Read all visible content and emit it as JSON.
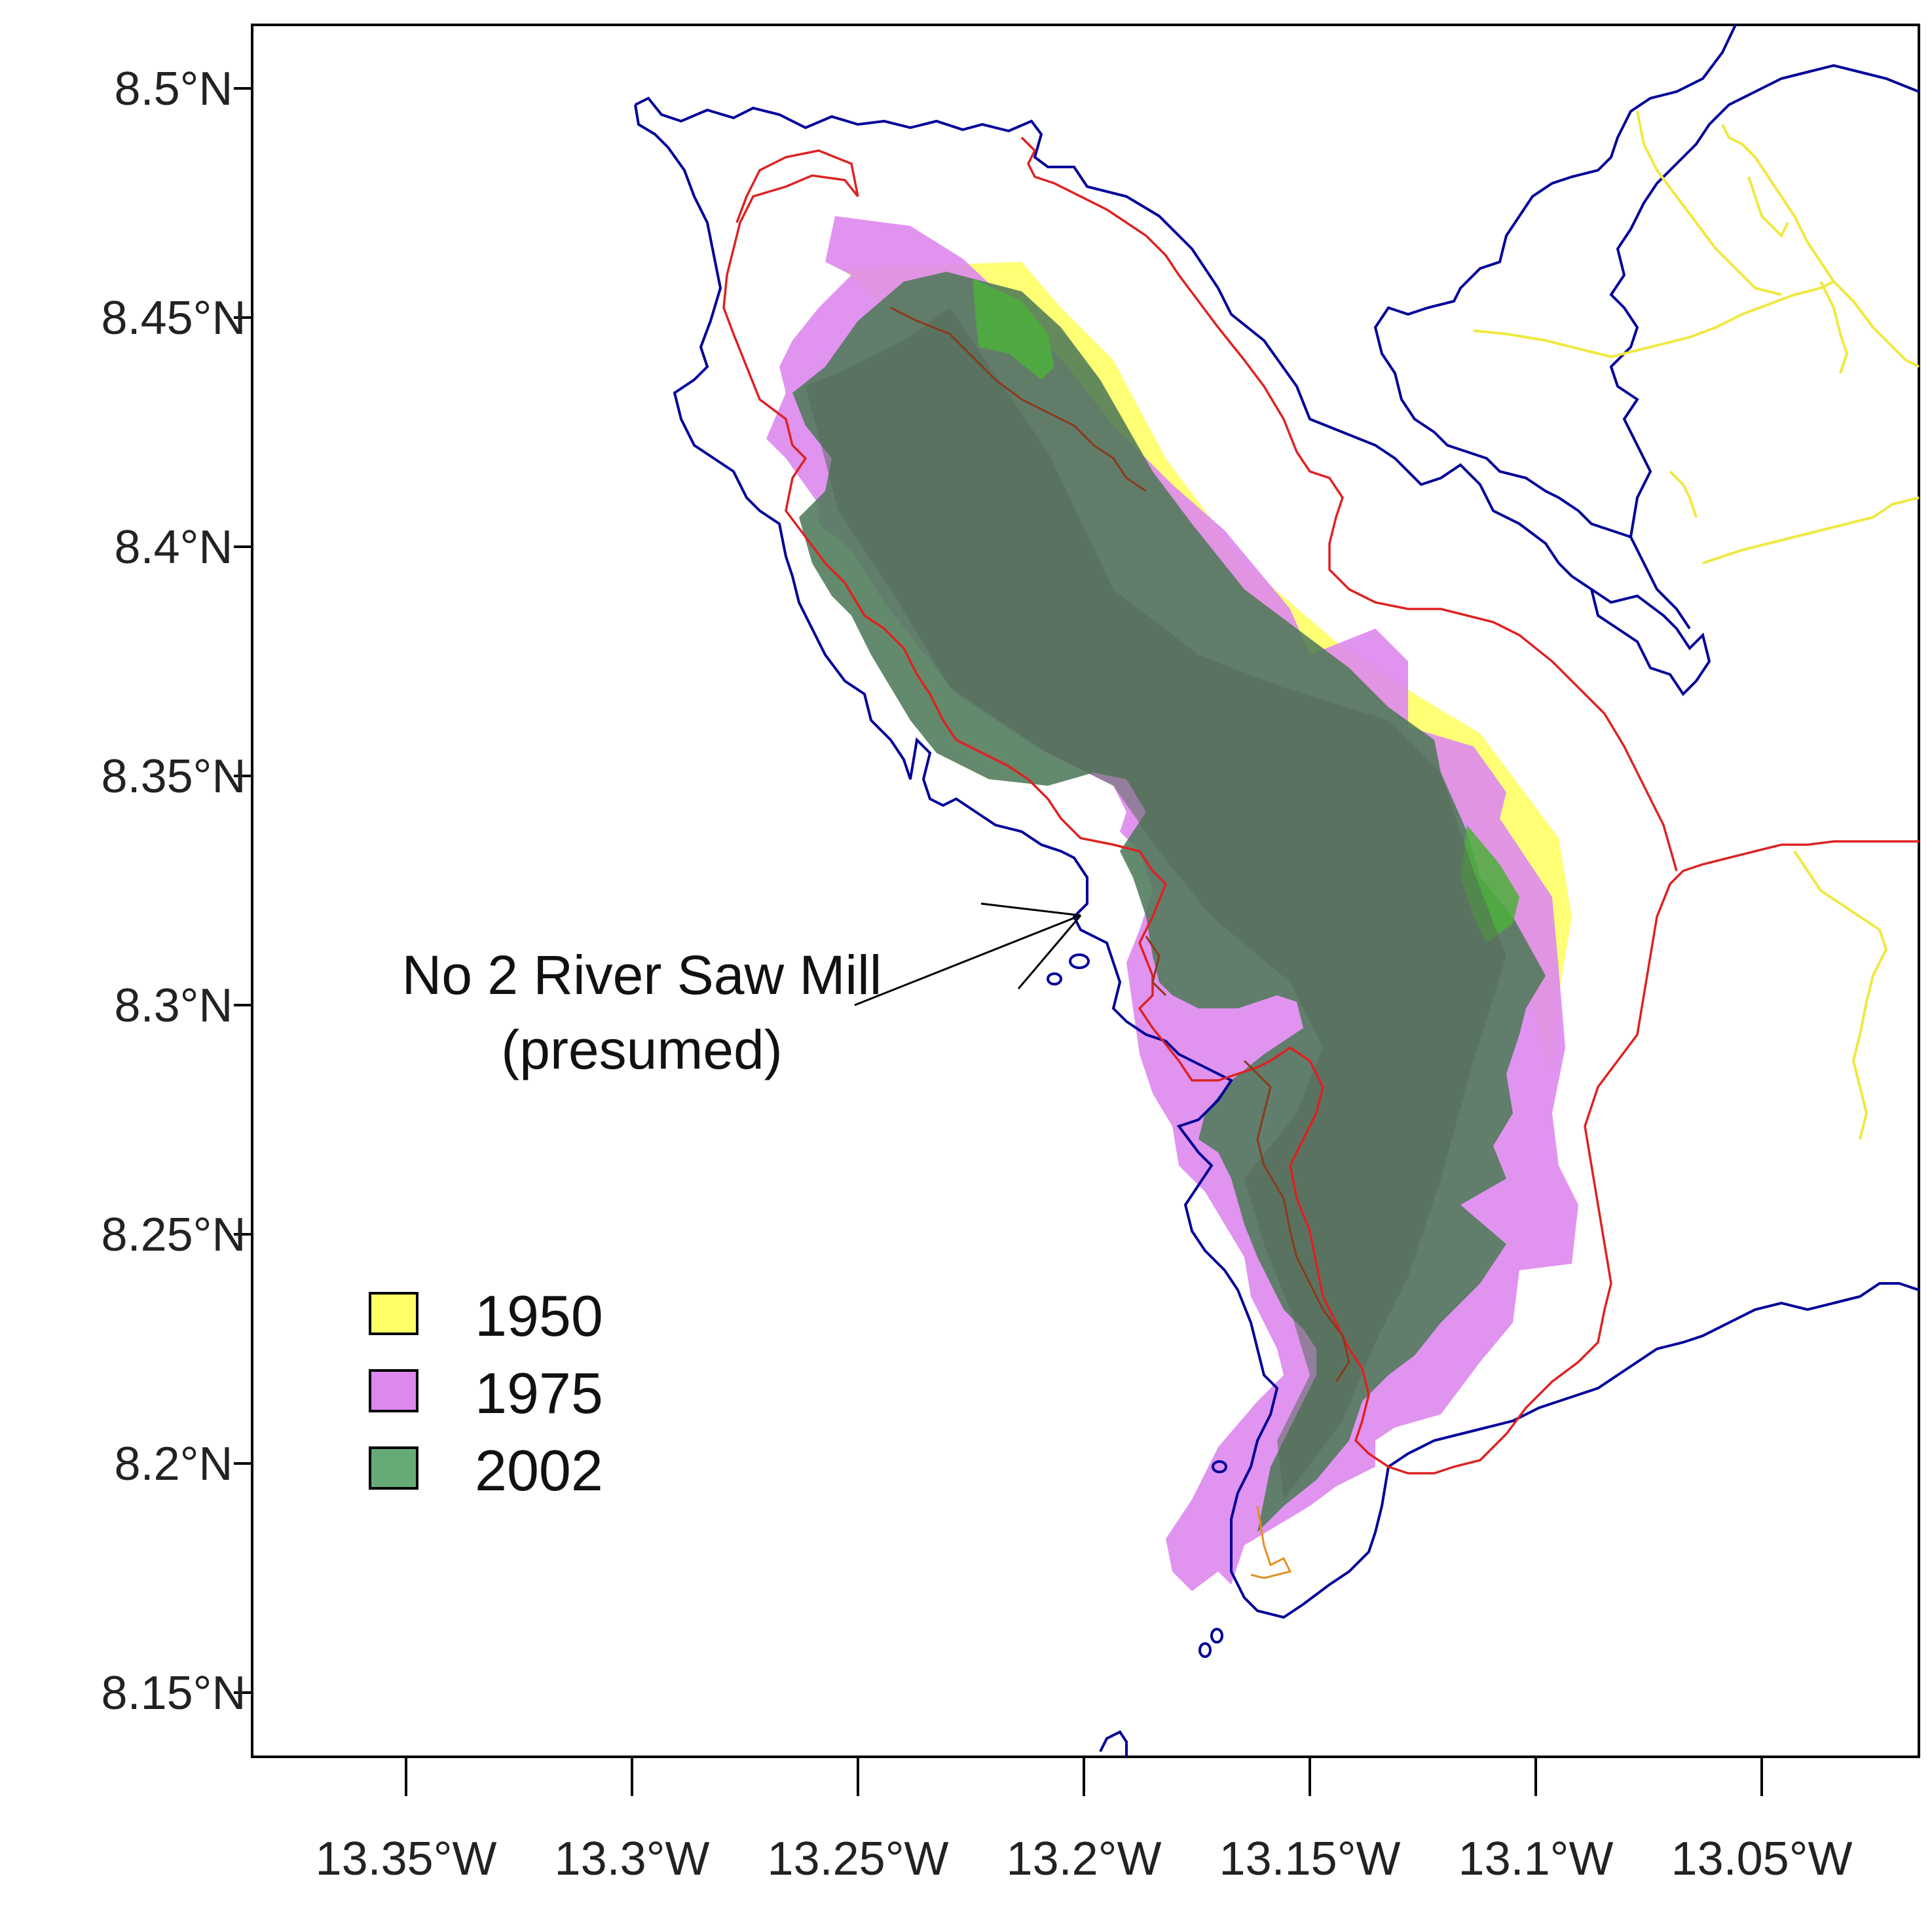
{
  "map": {
    "y_ticks": [
      {
        "value": 8.5,
        "label": "8.5°N"
      },
      {
        "value": 8.45,
        "label": "8.45°N"
      },
      {
        "value": 8.4,
        "label": "8.4°N"
      },
      {
        "value": 8.35,
        "label": "8.35°N"
      },
      {
        "value": 8.3,
        "label": "8.3°N"
      },
      {
        "value": 8.25,
        "label": "8.25°N"
      },
      {
        "value": 8.2,
        "label": "8.2°N"
      },
      {
        "value": 8.15,
        "label": "8.15°N"
      }
    ],
    "x_ticks": [
      {
        "value": -13.35,
        "label": "13.35°W"
      },
      {
        "value": -13.3,
        "label": "13.3°W"
      },
      {
        "value": -13.25,
        "label": "13.25°W"
      },
      {
        "value": -13.2,
        "label": "13.2°W"
      },
      {
        "value": -13.15,
        "label": "13.15°W"
      },
      {
        "value": -13.1,
        "label": "13.1°W"
      },
      {
        "value": -13.05,
        "label": "13.05°W"
      }
    ],
    "annotation": {
      "line1": "No 2 River Saw Mill",
      "line2": "(presumed)",
      "target_lon": -13.2,
      "target_lat": 8.32
    },
    "legend": [
      {
        "label": "1950",
        "color": "#ffff66"
      },
      {
        "label": "1975",
        "color": "#dd88ee"
      },
      {
        "label": "2002",
        "color": "#66aa77"
      }
    ],
    "colors": {
      "coastline": "#000099",
      "boundary_red": "#dd2222",
      "rivers_yellow": "#f0e840",
      "road_orange": "#e39020",
      "forest_2002": "#5e7f63",
      "forest_1975": "#dd88ee",
      "forest_1950": "#ffff66"
    }
  }
}
